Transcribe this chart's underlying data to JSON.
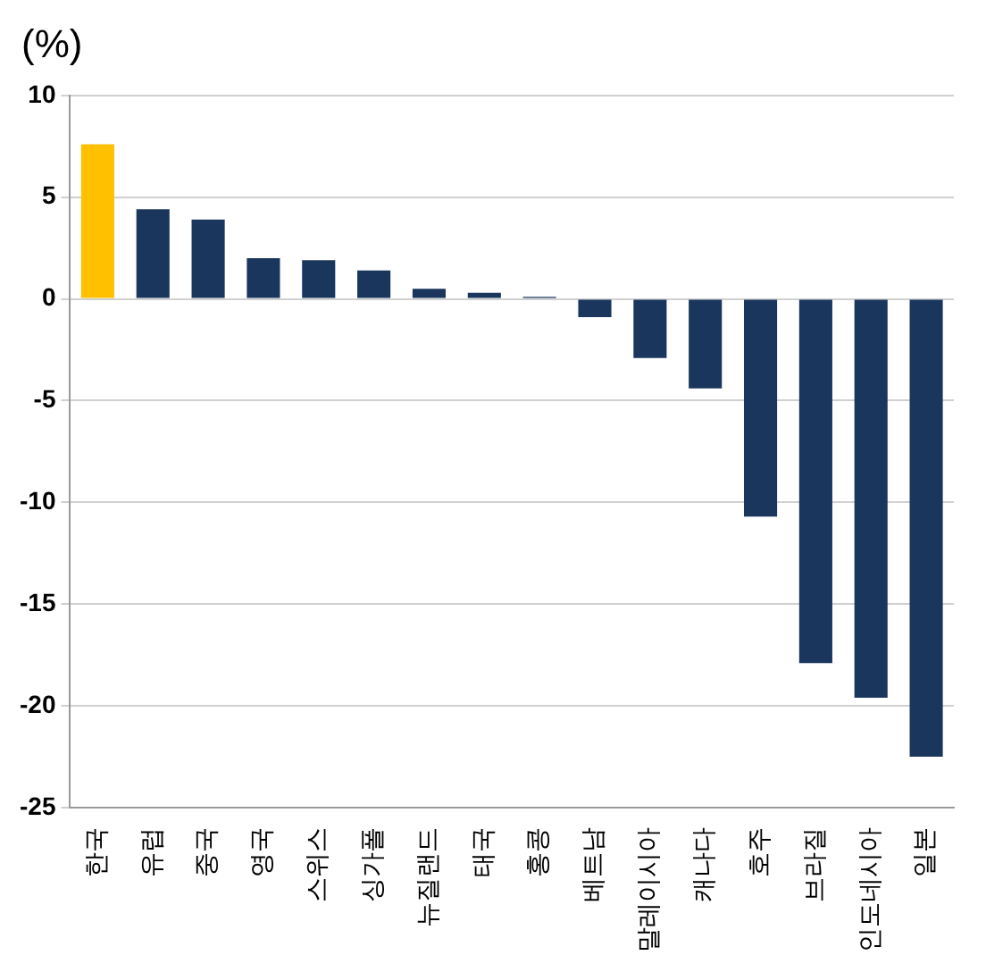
{
  "chart_data": {
    "type": "bar",
    "ylabel": "(%)",
    "categories": [
      "한국",
      "유럽",
      "중국",
      "영국",
      "스위스",
      "싱가폴",
      "뉴질랜드",
      "태국",
      "홍콩",
      "베트남",
      "말레이시아",
      "캐나다",
      "호주",
      "브라질",
      "인도네시아",
      "일본"
    ],
    "values": [
      7.6,
      4.4,
      3.9,
      2.0,
      1.9,
      1.4,
      0.5,
      0.3,
      0.1,
      -0.9,
      -2.9,
      -4.4,
      -10.7,
      -17.9,
      -19.6,
      -22.5
    ],
    "colors": [
      "#ffc000",
      "#1a365d",
      "#1a365d",
      "#1a365d",
      "#1a365d",
      "#1a365d",
      "#1a365d",
      "#1a365d",
      "#1a365d",
      "#1a365d",
      "#1a365d",
      "#1a365d",
      "#1a365d",
      "#1a365d",
      "#1a365d",
      "#1a365d"
    ],
    "ylim": [
      -25,
      10
    ],
    "yticks": [
      -25,
      -20,
      -15,
      -10,
      -5,
      0,
      5,
      10
    ],
    "grid": "y",
    "legend": false
  }
}
